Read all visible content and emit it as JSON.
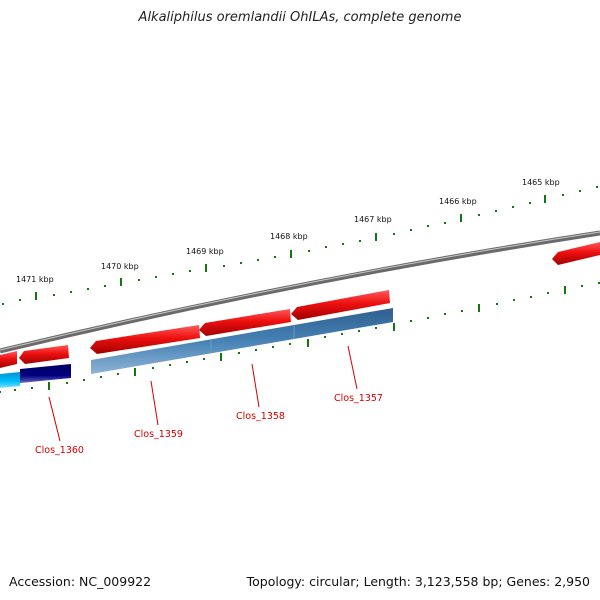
{
  "title": "Alkaliphilus oremlandii OhILAs, complete genome",
  "footer": {
    "accession": "Accession: NC_009922",
    "summary": "Topology: circular; Length: 3,123,558 bp; Genes: 2,950"
  },
  "kbp_labels": [
    "1465 kbp",
    "1466 kbp",
    "1467 kbp",
    "1468 kbp",
    "1469 kbp",
    "1470 kbp",
    "1471 kbp"
  ],
  "gene_labels": [
    "Clos_1357",
    "Clos_1358",
    "Clos_1359",
    "Clos_1360"
  ],
  "colors": {
    "forward_cds": "#e8141c",
    "reverse_cds": "#4682b4",
    "dark_feature": "#000080",
    "cyan_feature": "#00bfff",
    "tick_color": "#117711",
    "backbone": "#808080",
    "gene_label_color": "#d40000"
  }
}
